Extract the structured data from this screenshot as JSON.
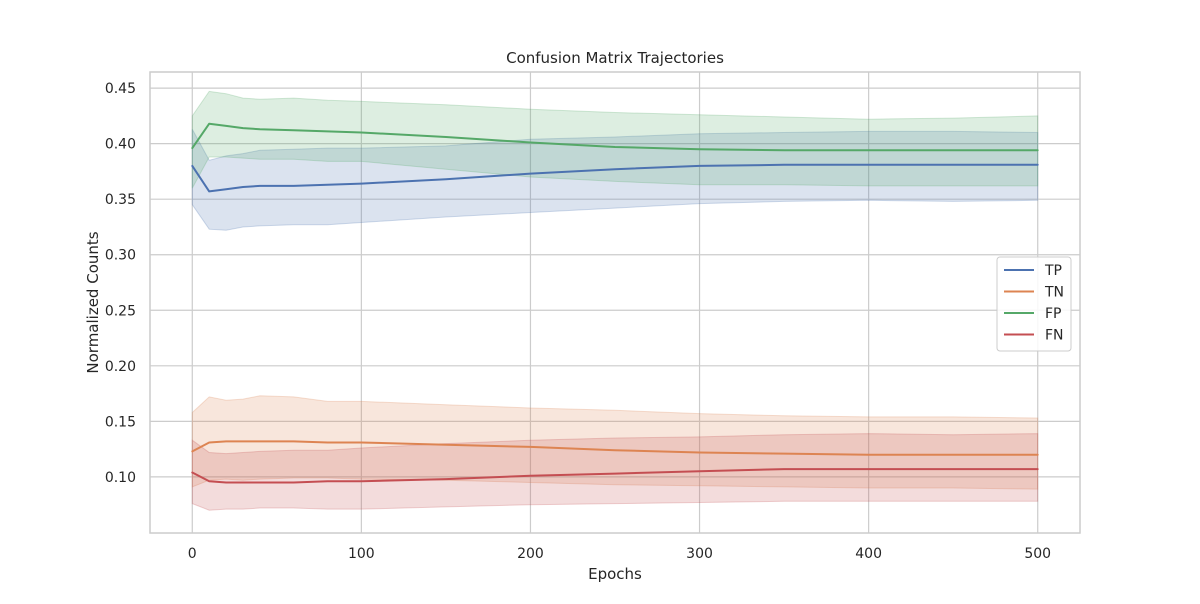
{
  "chart_data": {
    "type": "line",
    "title": "Confusion Matrix Trajectories",
    "xlabel": "Epochs",
    "ylabel": "Normalized Counts",
    "xlim": [
      -25,
      525
    ],
    "ylim": [
      0.0495,
      0.4645
    ],
    "xticks": [
      0,
      100,
      200,
      300,
      400,
      500
    ],
    "xtick_labels": [
      "0",
      "100",
      "200",
      "300",
      "400",
      "500"
    ],
    "yticks": [
      0.1,
      0.15,
      0.2,
      0.25,
      0.3,
      0.35,
      0.4,
      0.45
    ],
    "ytick_labels": [
      "0.10",
      "0.15",
      "0.20",
      "0.25",
      "0.30",
      "0.35",
      "0.40",
      "0.45"
    ],
    "grid": true,
    "legend_position": "right",
    "x": [
      0,
      10,
      20,
      30,
      40,
      60,
      80,
      100,
      150,
      200,
      250,
      300,
      350,
      400,
      450,
      500
    ],
    "series": [
      {
        "name": "TP",
        "color": "#4c72b0",
        "values": [
          0.38,
          0.357,
          0.359,
          0.361,
          0.362,
          0.362,
          0.363,
          0.364,
          0.368,
          0.373,
          0.377,
          0.38,
          0.381,
          0.381,
          0.381,
          0.381
        ],
        "lower": [
          0.345,
          0.323,
          0.322,
          0.325,
          0.326,
          0.327,
          0.327,
          0.329,
          0.334,
          0.338,
          0.342,
          0.346,
          0.348,
          0.349,
          0.348,
          0.349
        ],
        "upper": [
          0.413,
          0.385,
          0.389,
          0.391,
          0.394,
          0.395,
          0.396,
          0.396,
          0.398,
          0.404,
          0.406,
          0.409,
          0.41,
          0.411,
          0.411,
          0.41
        ]
      },
      {
        "name": "TN",
        "color": "#dd8452",
        "values": [
          0.123,
          0.131,
          0.132,
          0.132,
          0.132,
          0.132,
          0.131,
          0.131,
          0.129,
          0.127,
          0.124,
          0.122,
          0.121,
          0.12,
          0.12,
          0.12
        ],
        "lower": [
          0.091,
          0.097,
          0.098,
          0.097,
          0.098,
          0.099,
          0.099,
          0.098,
          0.097,
          0.095,
          0.093,
          0.092,
          0.091,
          0.09,
          0.09,
          0.089
        ],
        "upper": [
          0.158,
          0.172,
          0.169,
          0.17,
          0.173,
          0.172,
          0.168,
          0.168,
          0.165,
          0.162,
          0.16,
          0.157,
          0.155,
          0.154,
          0.154,
          0.153
        ]
      },
      {
        "name": "FP",
        "color": "#55a868",
        "values": [
          0.396,
          0.418,
          0.416,
          0.414,
          0.413,
          0.412,
          0.411,
          0.41,
          0.406,
          0.401,
          0.397,
          0.395,
          0.394,
          0.394,
          0.394,
          0.394
        ],
        "lower": [
          0.36,
          0.388,
          0.388,
          0.387,
          0.386,
          0.386,
          0.384,
          0.384,
          0.377,
          0.37,
          0.366,
          0.363,
          0.363,
          0.362,
          0.362,
          0.362
        ],
        "upper": [
          0.425,
          0.447,
          0.445,
          0.441,
          0.44,
          0.441,
          0.439,
          0.438,
          0.435,
          0.431,
          0.428,
          0.426,
          0.424,
          0.422,
          0.423,
          0.425
        ]
      },
      {
        "name": "FN",
        "color": "#c44e52",
        "values": [
          0.104,
          0.096,
          0.095,
          0.095,
          0.095,
          0.095,
          0.096,
          0.096,
          0.098,
          0.101,
          0.103,
          0.105,
          0.107,
          0.107,
          0.107,
          0.107
        ],
        "lower": [
          0.076,
          0.07,
          0.071,
          0.071,
          0.072,
          0.072,
          0.071,
          0.071,
          0.073,
          0.075,
          0.076,
          0.077,
          0.078,
          0.078,
          0.078,
          0.078
        ],
        "upper": [
          0.133,
          0.122,
          0.121,
          0.122,
          0.123,
          0.124,
          0.124,
          0.126,
          0.13,
          0.133,
          0.135,
          0.136,
          0.138,
          0.139,
          0.138,
          0.139
        ]
      }
    ]
  }
}
